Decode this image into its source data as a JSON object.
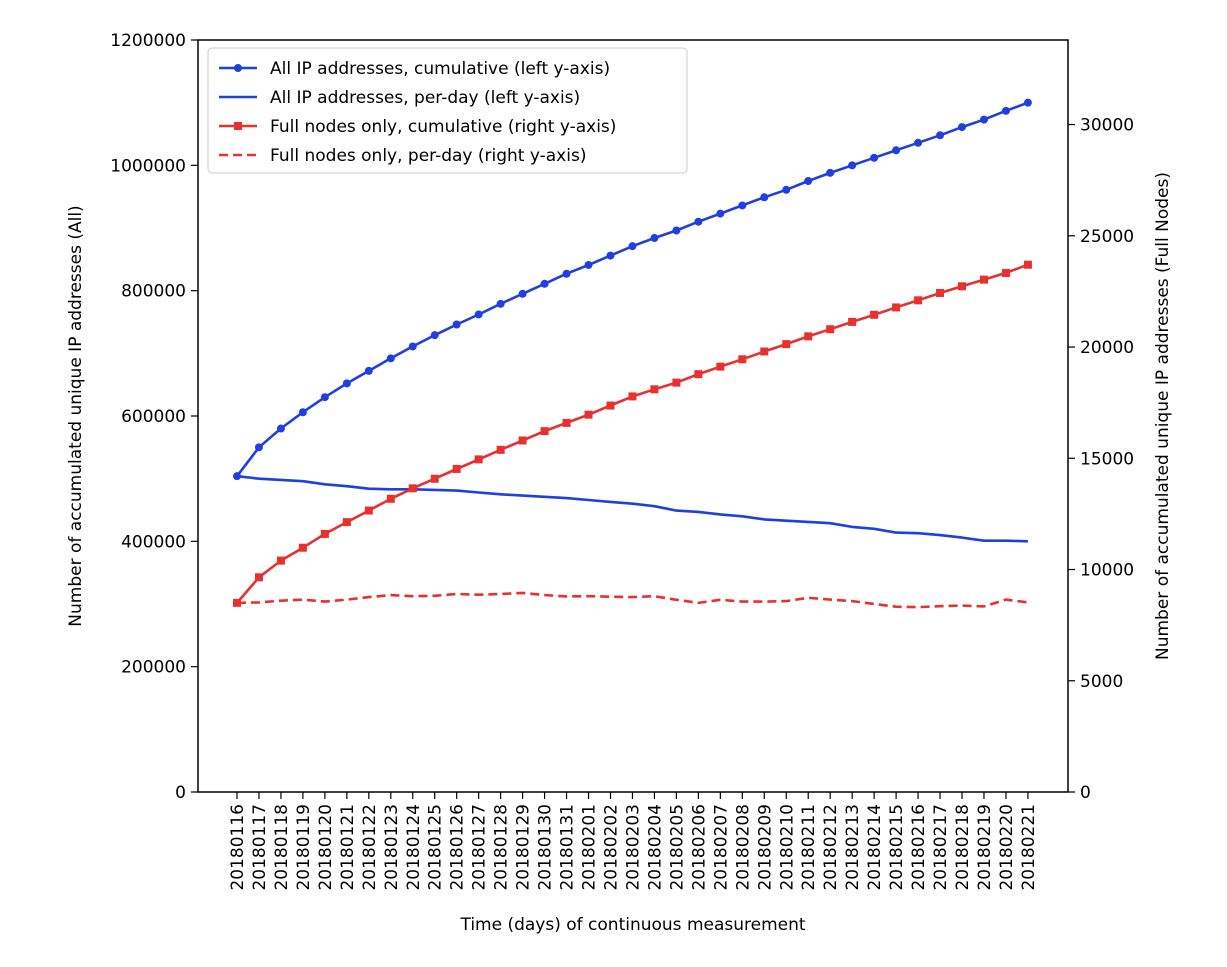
{
  "chart_data": {
    "type": "line",
    "xlabel": "Time (days) of continuous measurement",
    "ylabel_left": "Number of accumulated unique IP addresses (All)",
    "ylabel_right": "Number of accumulated unique IP addresses (Full Nodes)",
    "ylim_left": [
      0,
      1200000
    ],
    "ylim_right": [
      0,
      33800
    ],
    "yticks_left": [
      0,
      200000,
      400000,
      600000,
      800000,
      1000000,
      1200000
    ],
    "yticks_right": [
      0,
      5000,
      10000,
      15000,
      20000,
      25000,
      30000
    ],
    "grid": false,
    "legend_position": "top-left",
    "categories": [
      "20180116",
      "20180117",
      "20180118",
      "20180119",
      "20180120",
      "20180121",
      "20180122",
      "20180123",
      "20180124",
      "20180125",
      "20180126",
      "20180127",
      "20180128",
      "20180129",
      "20180130",
      "20180131",
      "20180201",
      "20180202",
      "20180203",
      "20180204",
      "20180205",
      "20180206",
      "20180207",
      "20180208",
      "20180209",
      "20180210",
      "20180211",
      "20180212",
      "20180213",
      "20180214",
      "20180215",
      "20180216",
      "20180217",
      "20180218",
      "20180219",
      "20180220",
      "20180221"
    ],
    "series": [
      {
        "name": "All IP addresses, cumulative (left y-axis)",
        "axis": "left",
        "color": "#1f3fe0",
        "style": "solid",
        "marker": "circle",
        "values": [
          504000,
          550000,
          580000,
          606000,
          630000,
          652000,
          672000,
          692000,
          711000,
          729000,
          746000,
          762000,
          779000,
          795000,
          811000,
          827000,
          841000,
          856000,
          871000,
          884000,
          896000,
          910000,
          923000,
          936000,
          949000,
          961000,
          975000,
          988000,
          1000000,
          1012000,
          1024000,
          1036000,
          1048000,
          1061000,
          1073000,
          1087000,
          1100000
        ]
      },
      {
        "name": "All IP addresses, per-day (left y-axis)",
        "axis": "left",
        "color": "#1f3fe0",
        "style": "solid",
        "marker": "none",
        "values": [
          504000,
          500000,
          498000,
          496000,
          491000,
          488000,
          484000,
          483000,
          483000,
          482000,
          481000,
          478000,
          475000,
          473000,
          471000,
          469000,
          466000,
          463000,
          460000,
          456000,
          449000,
          447000,
          443000,
          440000,
          435000,
          433000,
          431000,
          429000,
          423000,
          420000,
          414000,
          413000,
          410000,
          406000,
          401000,
          401000,
          400000
        ]
      },
      {
        "name": "Full nodes only, cumulative (right y-axis)",
        "axis": "right",
        "color": "#e8302f",
        "style": "solid",
        "marker": "square",
        "values": [
          8500,
          9650,
          10400,
          10980,
          11600,
          12130,
          12650,
          13180,
          13650,
          14080,
          14520,
          14950,
          15380,
          15800,
          16220,
          16590,
          16960,
          17370,
          17780,
          18100,
          18400,
          18780,
          19120,
          19450,
          19800,
          20130,
          20480,
          20800,
          21130,
          21450,
          21780,
          22100,
          22430,
          22730,
          23030,
          23330,
          23700
        ]
      },
      {
        "name": "Full nodes only, per-day (right y-axis)",
        "axis": "right",
        "color": "#e8302f",
        "style": "dashed",
        "marker": "none",
        "values": [
          8500,
          8520,
          8600,
          8650,
          8560,
          8650,
          8760,
          8850,
          8800,
          8820,
          8900,
          8870,
          8900,
          8950,
          8850,
          8790,
          8800,
          8780,
          8760,
          8800,
          8640,
          8500,
          8640,
          8560,
          8560,
          8580,
          8730,
          8650,
          8580,
          8450,
          8330,
          8310,
          8350,
          8380,
          8340,
          8650,
          8520
        ]
      }
    ]
  }
}
